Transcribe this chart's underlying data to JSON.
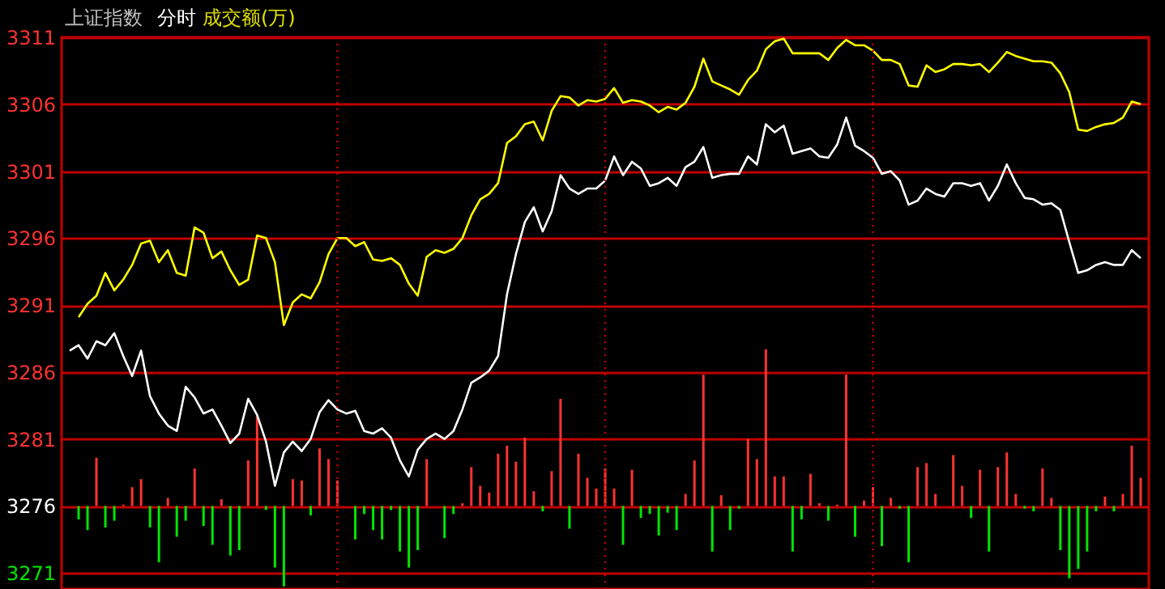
{
  "chart_data": {
    "type": "line",
    "title": "上证指数",
    "annotations": [
      "分时",
      "成交额(万)"
    ],
    "categories": [
      null,
      null,
      null,
      null,
      null,
      null,
      null,
      null,
      null,
      null,
      null,
      null,
      null,
      null,
      null,
      null,
      null,
      null,
      null,
      null,
      null,
      null,
      null,
      null,
      null,
      null,
      null,
      null,
      null,
      null,
      null,
      null,
      null,
      null,
      null,
      null,
      null,
      null,
      null,
      null,
      null,
      null,
      null,
      null,
      null,
      null,
      null,
      null,
      null,
      null,
      null,
      null,
      null,
      null,
      null,
      null,
      null,
      null,
      null,
      null,
      null,
      null,
      null,
      null,
      null,
      null,
      null,
      null,
      null,
      null,
      null,
      null,
      null,
      null,
      null,
      null,
      null,
      null,
      null,
      null,
      null,
      null,
      null,
      null,
      null,
      null,
      null,
      null,
      null,
      null,
      null,
      null,
      null,
      null,
      null,
      null,
      null,
      null,
      null,
      null,
      null,
      null,
      null,
      null,
      null,
      null,
      null,
      null,
      null,
      null,
      null,
      null,
      null,
      null,
      null,
      null,
      null,
      null,
      null,
      null,
      null
    ],
    "series": [
      {
        "type": "bar",
        "color": "#ff3232",
        "values": [
          null,
          -1.0,
          -1.8,
          3.6,
          -1.6,
          -1.1,
          0.1,
          1.4,
          2.0,
          -1.6,
          -4.2,
          0.6,
          -2.3,
          -1.1,
          2.8,
          -1.5,
          -2.9,
          0.5,
          -3.7,
          -3.3,
          3.4,
          6.7,
          -0.3,
          -4.6,
          -6.0,
          2.0,
          1.9,
          -0.7,
          4.3,
          3.5,
          1.9,
          null,
          -2.5,
          -0.6,
          -1.8,
          -2.5,
          -0.3,
          -3.4,
          -4.6,
          -3.3,
          3.5,
          null,
          -2.4,
          -0.6,
          0.2,
          2.9,
          1.5,
          1.0,
          3.9,
          4.5,
          3.3,
          5.1,
          1.1,
          -0.4,
          2.6,
          8.0,
          -1.7,
          3.9,
          2.1,
          1.3,
          2.8,
          1.3,
          -2.9,
          2.7,
          -0.9,
          -0.6,
          -2.2,
          -0.5,
          -1.8,
          0.9,
          3.4,
          9.8,
          -3.4,
          0.8,
          -1.8,
          -0.2,
          5.0,
          3.5,
          11.7,
          2.2,
          2.2,
          -3.4,
          -1.0,
          2.4,
          0.2,
          -1.1,
          0.1,
          9.8,
          -2.3,
          0.4,
          1.4,
          -3.0,
          0.6,
          -0.2,
          -4.2,
          2.9,
          3.2,
          0.9,
          null,
          3.8,
          1.5,
          -0.9,
          2.7,
          -3.4,
          2.9,
          4.0,
          0.9,
          -0.2,
          -0.4,
          2.8,
          0.6,
          -3.3,
          -5.4,
          -4.7,
          -3.4,
          -0.4,
          0.7,
          -0.4,
          0.9,
          4.5,
          2.1
        ],
        "base": [
          null,
          3276,
          3276,
          3276,
          3276,
          3276,
          3276,
          3276,
          3276,
          3276,
          3276,
          3276,
          3276,
          3276,
          3276,
          3276,
          3276,
          3276,
          3276,
          3276,
          3276,
          3276,
          3276,
          3276,
          3276,
          3276,
          3276,
          3276,
          3276,
          3276,
          3276,
          null,
          3276,
          3276,
          3276,
          3276,
          3276,
          3276,
          3276,
          3276,
          3276,
          null,
          3276,
          3276,
          3276,
          3276,
          3276,
          3276,
          3276,
          3276,
          3276,
          3276,
          3276,
          3276,
          3276,
          3276,
          3276,
          3276,
          3276,
          3276,
          3276,
          3276,
          3276,
          3276,
          3276,
          3276,
          3276,
          3276,
          3276,
          3276,
          3276,
          3276,
          3276,
          3276,
          3276,
          3276,
          3276,
          3276,
          3276,
          3276,
          3276,
          3276,
          3276,
          3276,
          3276,
          3276,
          3276,
          3276,
          3276,
          3276,
          3276,
          3276,
          3276,
          3276,
          3276,
          3276,
          3276,
          3276,
          null,
          3276,
          3276,
          3276,
          3276,
          3276,
          3276,
          3276,
          3276,
          3276,
          3276,
          3276,
          3276,
          3276,
          3276,
          3276,
          3276,
          3276,
          3276,
          3276,
          3276,
          3276,
          3276
        ],
        "colors": [
          "#ff3232",
          "#00e600",
          "#00e600",
          "#ff3232",
          "#00e600",
          "#00e600",
          "#ff3232",
          "#ff3232",
          "#ff3232",
          "#00e600",
          "#00e600",
          "#ff3232",
          "#00e600",
          "#00e600",
          "#ff3232",
          "#00e600",
          "#00e600",
          "#ff3232",
          "#00e600",
          "#00e600",
          "#ff3232",
          "#ff3232",
          "#00e600",
          "#00e600",
          "#00e600",
          "#ff3232",
          "#ff3232",
          "#00e600",
          "#ff3232",
          "#ff3232",
          "#ff3232",
          "#ff3232",
          "#00e600",
          "#00e600",
          "#00e600",
          "#00e600",
          "#00e600",
          "#00e600",
          "#00e600",
          "#00e600",
          "#ff3232",
          "#ff3232",
          "#00e600",
          "#00e600",
          "#ff3232",
          "#ff3232",
          "#ff3232",
          "#ff3232",
          "#ff3232",
          "#ff3232",
          "#ff3232",
          "#ff3232",
          "#ff3232",
          "#00e600",
          "#ff3232",
          "#ff3232",
          "#00e600",
          "#ff3232",
          "#ff3232",
          "#ff3232",
          "#ff3232",
          "#ff3232",
          "#00e600",
          "#ff3232",
          "#00e600",
          "#00e600",
          "#00e600",
          "#00e600",
          "#00e600",
          "#ff3232",
          "#ff3232",
          "#ff3232",
          "#00e600",
          "#ff3232",
          "#00e600",
          "#00e600",
          "#ff3232",
          "#ff3232",
          "#ff3232",
          "#ff3232",
          "#ff3232",
          "#00e600",
          "#00e600",
          "#ff3232",
          "#ff3232",
          "#00e600",
          "#ff3232",
          "#ff3232",
          "#00e600",
          "#ff3232",
          "#ff3232",
          "#00e600",
          "#ff3232",
          "#00e600",
          "#00e600",
          "#ff3232",
          "#ff3232",
          "#ff3232",
          "#ff3232",
          "#ff3232",
          "#ff3232",
          "#00e600",
          "#ff3232",
          "#00e600",
          "#ff3232",
          "#ff3232",
          "#ff3232",
          "#00e600",
          "#00e600",
          "#ff3232",
          "#ff3232",
          "#00e600",
          "#00e600",
          "#00e600",
          "#00e600",
          "#00e600",
          "#ff3232",
          "#00e600",
          "#ff3232",
          "#ff3232",
          "#ff3232"
        ]
      },
      {
        "color": "#ffffff",
        "values": [
          3287.6,
          3288.0,
          3287.0,
          3288.3,
          3288.0,
          3288.9,
          3287.2,
          3285.7,
          3287.6,
          3284.2,
          3282.9,
          3282.0,
          3281.6,
          3284.9,
          3284.1,
          3282.9,
          3283.2,
          3282.0,
          3280.7,
          3281.4,
          3284.0,
          3282.8,
          3280.8,
          3277.5,
          3280.0,
          3280.8,
          3280.1,
          3281.0,
          3283.0,
          3283.9,
          3283.2,
          3282.9,
          3283.1,
          3281.6,
          3281.4,
          3281.8,
          3281.1,
          3279.4,
          3278.2,
          3280.2,
          3281.0,
          3281.4,
          3281.0,
          3281.6,
          3283.2,
          3285.2,
          3285.6,
          3286.1,
          3287.2,
          3291.8,
          3294.8,
          3297.2,
          3298.3,
          3296.5,
          3298.0,
          3300.7,
          3299.7,
          3299.3,
          3299.7,
          3299.7,
          3300.3,
          3302.1,
          3300.7,
          3301.7,
          3301.2,
          3299.9,
          3300.1,
          3300.5,
          3299.9,
          3301.3,
          3301.7,
          3302.8,
          3300.5,
          3300.7,
          3300.8,
          3300.8,
          3302.1,
          3301.5,
          3304.5,
          3303.9,
          3304.4,
          3302.3,
          3302.5,
          3302.7,
          3302.1,
          3302.0,
          3303.0,
          3305.0,
          3302.9,
          3302.5,
          3302.0,
          3300.8,
          3301.0,
          3300.3,
          3298.5,
          3298.8,
          3299.7,
          3299.3,
          3299.1,
          3300.1,
          3300.1,
          3299.9,
          3300.1,
          3298.8,
          3299.9,
          3301.5,
          3300.1,
          3299.0,
          3298.9,
          3298.5,
          3298.6,
          3298.1,
          3295.7,
          3293.4,
          3293.6,
          3294.0,
          3294.2,
          3294.0,
          3294.0,
          3295.1,
          3294.5
        ]
      },
      {
        "color": "#ffff00",
        "values": [
          null,
          3290.1,
          3291.1,
          3291.7,
          3293.4,
          3292.1,
          3292.9,
          3294.0,
          3295.6,
          3295.8,
          3294.2,
          3295.1,
          3293.4,
          3293.2,
          3296.8,
          3296.4,
          3294.5,
          3295.0,
          3293.6,
          3292.5,
          3292.9,
          3296.2,
          3296.0,
          3294.2,
          3289.5,
          3291.2,
          3291.8,
          3291.5,
          3292.7,
          3294.8,
          3296.0,
          3296.0,
          3295.4,
          3295.7,
          3294.4,
          3294.3,
          3294.5,
          3294.0,
          3292.6,
          3291.7,
          3294.6,
          3295.1,
          3294.9,
          3295.2,
          3296.0,
          3297.7,
          3298.9,
          3299.3,
          3300.1,
          3303.1,
          3303.6,
          3304.5,
          3304.7,
          3303.3,
          3305.5,
          3306.6,
          3306.5,
          3305.9,
          3306.3,
          3306.2,
          3306.4,
          3307.2,
          3306.1,
          3306.3,
          3306.2,
          3305.9,
          3305.4,
          3305.8,
          3305.6,
          3306.1,
          3307.3,
          3309.4,
          3307.7,
          3307.4,
          3307.1,
          3306.7,
          3307.8,
          3308.5,
          3310.1,
          3310.7,
          3310.9,
          3309.8,
          3309.8,
          3309.8,
          3309.8,
          3309.3,
          3310.2,
          3310.8,
          3310.4,
          3310.4,
          3310.0,
          3309.3,
          3309.3,
          3309.0,
          3307.4,
          3307.3,
          3308.9,
          3308.4,
          3308.6,
          3309.0,
          3309.0,
          3308.9,
          3309.0,
          3308.4,
          3309.1,
          3309.9,
          3309.6,
          3309.4,
          3309.2,
          3309.2,
          3309.1,
          3308.3,
          3306.9,
          3304.1,
          3304.0,
          3304.3,
          3304.5,
          3304.6,
          3305.0,
          3306.2,
          3306.0
        ]
      }
    ],
    "ylim": [
      3269.8,
      3311
    ],
    "yticks": [
      3271,
      3276,
      3281,
      3286,
      3291,
      3296,
      3301,
      3306,
      3311
    ],
    "tick_labels": "y",
    "grid": true
  }
}
